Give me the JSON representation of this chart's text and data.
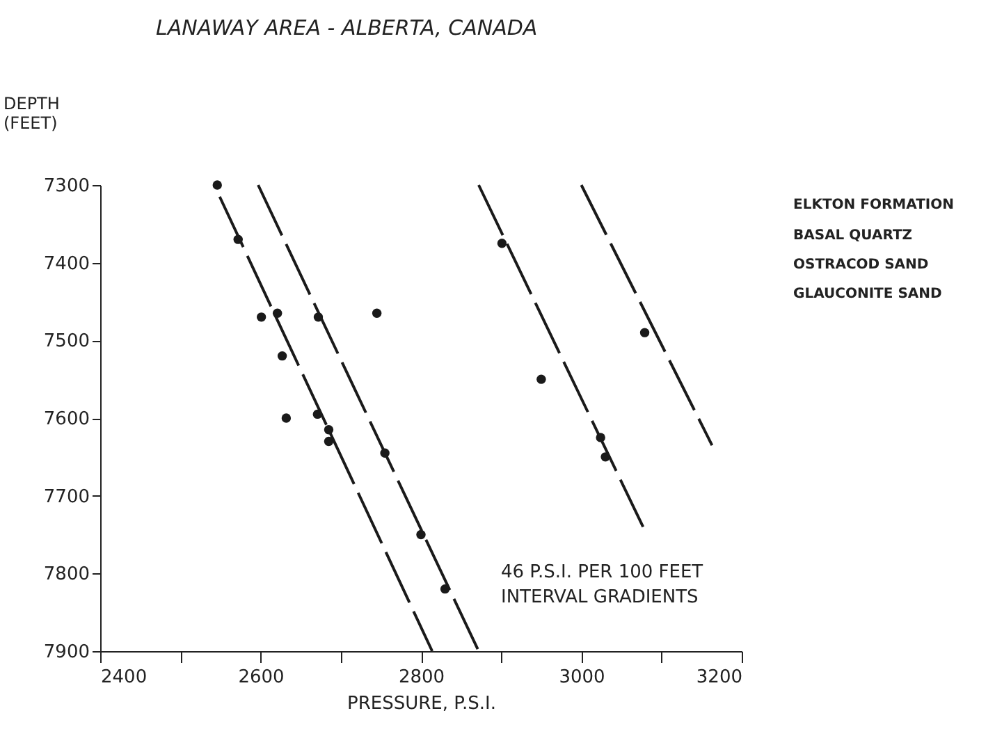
{
  "chart_data": {
    "type": "scatter",
    "title": "LANAWAY AREA - ALBERTA, CANADA",
    "xlabel": "PRESSURE, P.S.I.",
    "ylabel": "DEPTH\n(FEET)",
    "xlim": [
      2400,
      3200
    ],
    "ylim": [
      7900,
      7300
    ],
    "xticks": [
      2400,
      {
        "value": 2500,
        "label": null
      },
      2600,
      {
        "value": 2700,
        "label": null
      },
      2800,
      {
        "value": 2900,
        "label": null
      },
      3000,
      {
        "value": 3100,
        "label": null
      },
      3200
    ],
    "yticks": [
      7300,
      7400,
      7500,
      7600,
      7700,
      7800,
      7900
    ],
    "grid": false,
    "series": [
      {
        "marker": "circle",
        "color": "#1a1a1a",
        "x": [
          2546,
          2572,
          2601,
          2621,
          2672,
          2745,
          2627,
          2632,
          2671,
          2685,
          2685,
          2755,
          2800,
          2830,
          2901,
          3079,
          2950,
          3024,
          3030
        ],
        "values": [
          7300,
          7370,
          7470,
          7465,
          7470,
          7465,
          7520,
          7600,
          7595,
          7615,
          7630,
          7645,
          7750,
          7820,
          7375,
          7490,
          7550,
          7625,
          7650
        ]
      },
      {
        "type": "line",
        "color": "#1a1a1a",
        "line_style": "dashed",
        "x": [
          2549,
          2814
        ],
        "values": [
          7315,
          7900
        ]
      },
      {
        "type": "line",
        "color": "#1a1a1a",
        "line_style": "dashed",
        "x": [
          2597,
          2872
        ],
        "values": [
          7300,
          7900
        ]
      },
      {
        "type": "line",
        "color": "#1a1a1a",
        "line_style": "dashed",
        "x": [
          2872,
          3077
        ],
        "values": [
          7300,
          7740
        ]
      },
      {
        "type": "line",
        "color": "#1a1a1a",
        "line_style": "dashed",
        "x": [
          3000,
          3163
        ],
        "values": [
          7300,
          7635
        ]
      }
    ],
    "annotations": [
      "46 P.S.I. PER 100 FEET\nINTERVAL GRADIENTS",
      "ELKTON FORMATION",
      "BASAL QUARTZ",
      "OSTRACOD SAND",
      "GLAUCONITE SAND"
    ]
  }
}
